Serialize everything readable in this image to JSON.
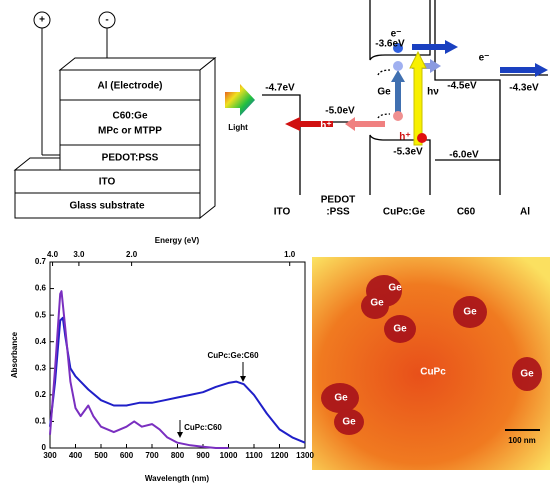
{
  "device": {
    "electrodes": [
      "+",
      "-"
    ],
    "layers": [
      "Al (Electrode)",
      "C60:Ge",
      "MPc or MTPP",
      "PEDOT:PSS",
      "ITO",
      "Glass substrate"
    ],
    "light": "Light"
  },
  "energy_diagram": {
    "levels": [
      "-4.7eV",
      "-5.0eV",
      "-3.6eV",
      "-5.3eV",
      "-4.5eV",
      "-6.0eV",
      "-4.3eV"
    ],
    "carriers": [
      "e⁻",
      "e⁻",
      "h⁺",
      "h⁺"
    ],
    "photon": "hν",
    "dopant": "Ge",
    "columns": [
      "ITO",
      "PEDOT",
      ":PSS",
      "CuPc:Ge",
      "C60",
      "Al"
    ]
  },
  "chart_data": {
    "type": "line",
    "x_label": "Wavelength (nm)",
    "y_label": "Absorbance",
    "x2_label": "Energy (eV)",
    "xlim": [
      300,
      1300
    ],
    "xticks": [
      300,
      400,
      500,
      600,
      700,
      800,
      900,
      1000,
      1100,
      1200,
      1300
    ],
    "ylim": [
      0,
      0.7
    ],
    "yticks": [
      0,
      0.1,
      0.2,
      0.3,
      0.4,
      0.5,
      0.6,
      0.7
    ],
    "x2ticks": [
      {
        "value": 4,
        "label": "4.0"
      },
      {
        "value": 3,
        "label": "3.0"
      },
      {
        "value": 2,
        "label": "2.0"
      },
      {
        "value": 1,
        "label": "1.0"
      }
    ],
    "series": [
      {
        "name": "CuPc:Ge:C60",
        "color": "#1f1fc8",
        "x": [
          300,
          320,
          340,
          350,
          360,
          380,
          400,
          450,
          500,
          550,
          600,
          650,
          700,
          750,
          800,
          850,
          900,
          950,
          1000,
          1030,
          1060,
          1100,
          1150,
          1200,
          1250,
          1300
        ],
        "values": [
          0.08,
          0.25,
          0.48,
          0.49,
          0.42,
          0.3,
          0.27,
          0.22,
          0.18,
          0.16,
          0.16,
          0.17,
          0.17,
          0.18,
          0.19,
          0.2,
          0.21,
          0.23,
          0.245,
          0.25,
          0.24,
          0.2,
          0.13,
          0.07,
          0.04,
          0.02
        ]
      },
      {
        "name": "CuPc:C60",
        "color": "#7a2fc0",
        "x": [
          300,
          320,
          340,
          345,
          360,
          380,
          400,
          420,
          450,
          470,
          500,
          550,
          600,
          630,
          660,
          700,
          730,
          760,
          800,
          850,
          900,
          950,
          1000
        ],
        "values": [
          0.05,
          0.3,
          0.58,
          0.59,
          0.45,
          0.25,
          0.15,
          0.12,
          0.16,
          0.12,
          0.08,
          0.06,
          0.08,
          0.1,
          0.08,
          0.09,
          0.07,
          0.04,
          0.02,
          0.01,
          0.005,
          0,
          0
        ]
      }
    ]
  },
  "tem_image": {
    "particles": [
      "Ge",
      "Ge",
      "Ge",
      "Ge",
      "Ge",
      "Ge",
      "Ge"
    ],
    "matrix": "CuPc",
    "scale_bar": "100 nm"
  }
}
